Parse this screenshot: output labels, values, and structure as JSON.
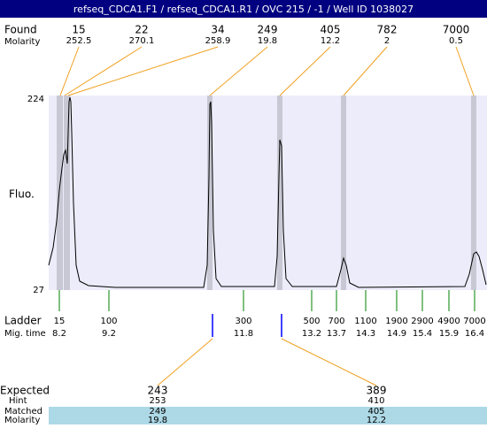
{
  "title": "refseq_CDCA1.F1 / refseq_CDCA1.R1 / OVC 215 / -1 / Well ID 1038027",
  "found": {
    "label": "Found",
    "molarity_label": "Molarity",
    "sizes": [
      15,
      22,
      34,
      249,
      405,
      782,
      7000
    ],
    "molarities": [
      252.5,
      270.1,
      258.9,
      19.8,
      12.2,
      2,
      0.5
    ]
  },
  "y_axis": {
    "label": "Fluo.",
    "top": 224,
    "bottom": 27
  },
  "ladder": {
    "label": "Ladder",
    "time_label": "Mig. time",
    "sizes": [
      15,
      100,
      300,
      500,
      700,
      1100,
      1900,
      2900,
      4900,
      7000
    ],
    "times": [
      8.2,
      9.2,
      11.8,
      13.2,
      13.7,
      14.3,
      14.9,
      15.4,
      15.9,
      16.4
    ]
  },
  "expected": {
    "label": "Expected",
    "hint_label": "Hint",
    "matched_label": "Matched",
    "molarity_label": "Molarity",
    "expected": [
      243,
      389
    ],
    "hint": [
      253,
      410
    ],
    "matched": [
      249,
      405
    ],
    "molarity": [
      19.8,
      12.2
    ]
  }
}
